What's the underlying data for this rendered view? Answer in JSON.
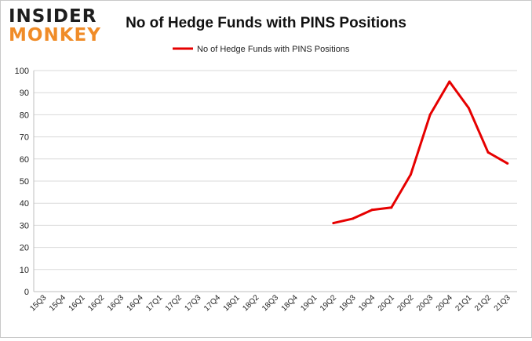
{
  "logo": {
    "line1": "INSIDER",
    "line2": "MONKEY"
  },
  "colors": {
    "series": "#e60000",
    "logo_dark": "#1e1e1e",
    "logo_orange": "#f08c28"
  },
  "chart_data": {
    "type": "line",
    "title": "No of Hedge Funds with PINS Positions",
    "xlabel": "",
    "ylabel": "",
    "legend_position": "top-center",
    "grid": true,
    "ylim": [
      0,
      100
    ],
    "yticks": [
      0,
      10,
      20,
      30,
      40,
      50,
      60,
      70,
      80,
      90,
      100
    ],
    "categories": [
      "15Q3",
      "15Q4",
      "16Q1",
      "16Q2",
      "16Q3",
      "16Q4",
      "17Q1",
      "17Q2",
      "17Q3",
      "17Q4",
      "18Q1",
      "18Q2",
      "18Q3",
      "18Q4",
      "19Q1",
      "19Q2",
      "19Q3",
      "19Q4",
      "20Q1",
      "20Q2",
      "20Q3",
      "20Q4",
      "21Q1",
      "21Q2",
      "21Q3"
    ],
    "series": [
      {
        "name": "No of Hedge Funds with PINS Positions",
        "color": "#e60000",
        "values": [
          null,
          null,
          null,
          null,
          null,
          null,
          null,
          null,
          null,
          null,
          null,
          null,
          null,
          null,
          null,
          31,
          33,
          37,
          38,
          53,
          80,
          95,
          83,
          63,
          58
        ]
      }
    ]
  }
}
